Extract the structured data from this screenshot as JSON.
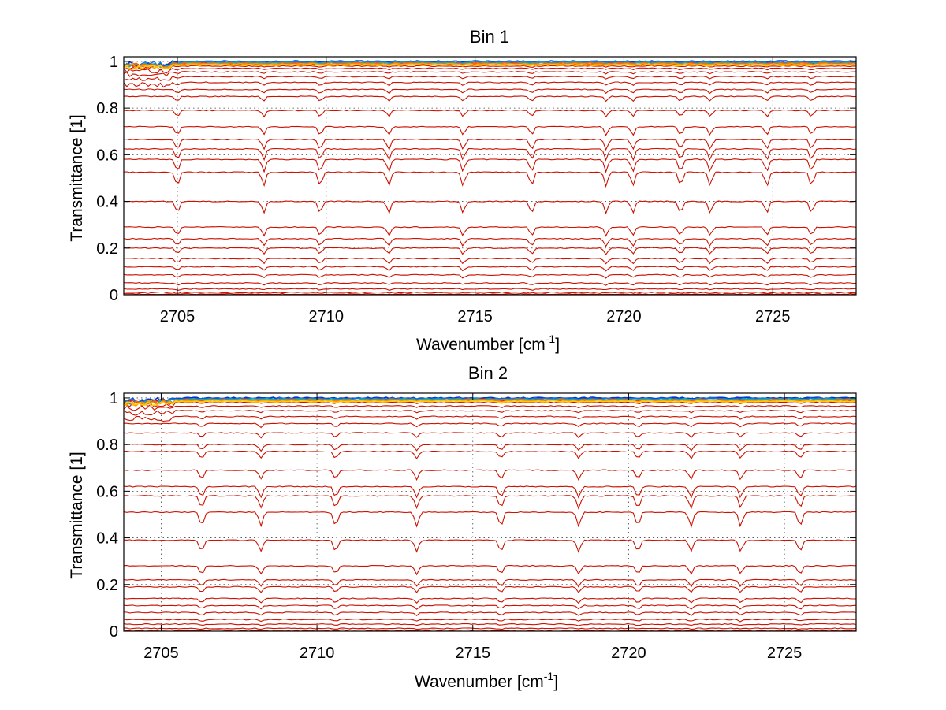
{
  "chart_data": [
    {
      "type": "line",
      "title": "Bin 1",
      "xlabel": "Wavenumber [cm",
      "xlabel_sup": "-1",
      "xlabel_end": "]",
      "ylabel": "Transmittance [1]",
      "xlim": [
        2703.2,
        2727.8
      ],
      "ylim": [
        0,
        1.02
      ],
      "xticks": [
        2705,
        2710,
        2715,
        2720,
        2725
      ],
      "xtick_labels": [
        "2705",
        "2710",
        "2715",
        "2720",
        "2725"
      ],
      "yticks": [
        0,
        0.2,
        0.4,
        0.6,
        0.8,
        1
      ],
      "ytick_labels": [
        "0",
        "0.2",
        "0.4",
        "0.6",
        "0.8",
        "1"
      ],
      "grid": "dotted",
      "absorption_lines": [
        2705.0,
        2707.9,
        2709.8,
        2712.1,
        2714.6,
        2716.9,
        2719.4,
        2720.3,
        2721.9,
        2722.9,
        2724.8,
        2726.3
      ],
      "series_color": "#cc1100",
      "top_colors": [
        "#0033cc",
        "#1177dd",
        "#22aaaa",
        "#ff6600",
        "#ff9900",
        "#ffcc00"
      ],
      "series_levels": [
        0.995,
        0.988,
        0.98,
        0.97,
        0.955,
        0.935,
        0.91,
        0.88,
        0.85,
        0.79,
        0.72,
        0.665,
        0.625,
        0.58,
        0.525,
        0.4,
        0.29,
        0.24,
        0.2,
        0.155,
        0.12,
        0.085,
        0.05,
        0.025,
        0.01,
        0.003
      ]
    },
    {
      "type": "line",
      "title": "Bin 2",
      "xlabel": "Wavenumber [cm",
      "xlabel_sup": "-1",
      "xlabel_end": "]",
      "ylabel": "Transmittance [1]",
      "xlim": [
        2703.8,
        2727.3
      ],
      "ylim": [
        0,
        1.02
      ],
      "xticks": [
        2705,
        2710,
        2715,
        2720,
        2725
      ],
      "xtick_labels": [
        "2705",
        "2710",
        "2715",
        "2720",
        "2725"
      ],
      "yticks": [
        0,
        0.2,
        0.4,
        0.6,
        0.8,
        1
      ],
      "ytick_labels": [
        "0",
        "0.2",
        "0.4",
        "0.6",
        "0.8",
        "1"
      ],
      "grid": "dotted",
      "absorption_lines": [
        2706.3,
        2708.2,
        2710.6,
        2713.2,
        2715.9,
        2718.4,
        2720.3,
        2722.0,
        2723.6,
        2725.5
      ],
      "series_color": "#cc1100",
      "top_colors": [
        "#0033cc",
        "#1177dd",
        "#22aaaa",
        "#ff6600",
        "#ff9900",
        "#ffcc00"
      ],
      "series_levels": [
        0.998,
        0.99,
        0.98,
        0.965,
        0.945,
        0.92,
        0.89,
        0.85,
        0.8,
        0.77,
        0.69,
        0.62,
        0.58,
        0.51,
        0.39,
        0.28,
        0.22,
        0.19,
        0.14,
        0.11,
        0.08,
        0.05,
        0.03,
        0.012,
        0.004
      ]
    }
  ]
}
